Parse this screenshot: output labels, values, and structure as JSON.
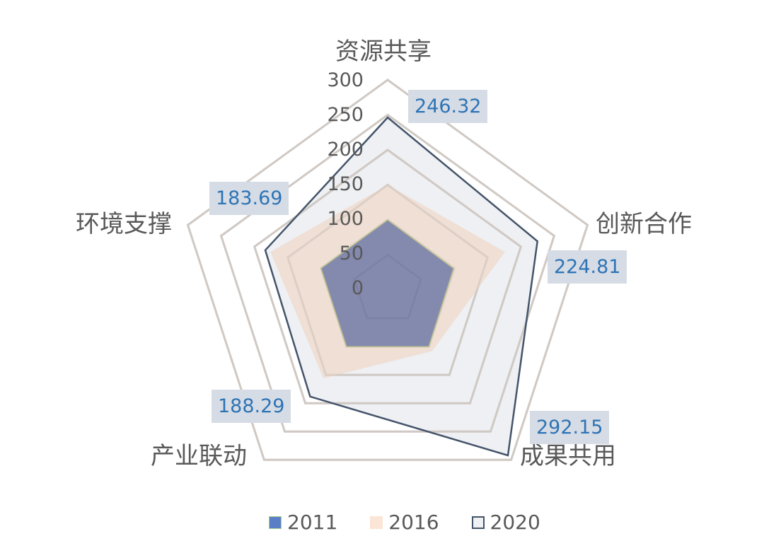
{
  "chart_data": {
    "type": "radar",
    "title": "",
    "axes": [
      "资源共享",
      "创新合作",
      "成果共用",
      "产业联动",
      "环境支撑"
    ],
    "rlim": [
      0,
      300
    ],
    "ticks": [
      "300",
      "250",
      "200",
      "150",
      "100",
      "50",
      "0"
    ],
    "tick_values": [
      300,
      250,
      200,
      150,
      100,
      50,
      0
    ],
    "grid": true,
    "legend_position": "bottom",
    "series": [
      {
        "name": "2011",
        "values": [
          100,
          99,
          100,
          100,
          100
        ],
        "fill": "#8489AE",
        "stroke": "#B9BF8E"
      },
      {
        "name": "2016",
        "values": [
          150,
          176,
          108,
          156,
          176
        ],
        "fill": "#EEDDD3",
        "stroke": "none"
      },
      {
        "name": "2020",
        "values": [
          246.32,
          224.81,
          292.15,
          188.29,
          183.69
        ],
        "fill": "#EEF0F3",
        "stroke": "#44546A"
      }
    ],
    "data_labels": {
      "series": "2020",
      "values": [
        "246.32",
        "224.81",
        "292.15",
        "188.29",
        "183.69"
      ]
    }
  },
  "legend": {
    "items": [
      {
        "label": "2011",
        "color": "#5B7FC7",
        "border": "#A9D18E"
      },
      {
        "label": "2016",
        "color": "#FBE5D6",
        "border": "#FBE5D6"
      },
      {
        "label": "2020",
        "color": "#EEF0F3",
        "border": "#44546A"
      }
    ]
  },
  "colors": {
    "grid": "#D0D0D0",
    "label_text": "#595959",
    "data_label_text": "#2E74B5",
    "data_label_bg": "#D6DCE5"
  }
}
